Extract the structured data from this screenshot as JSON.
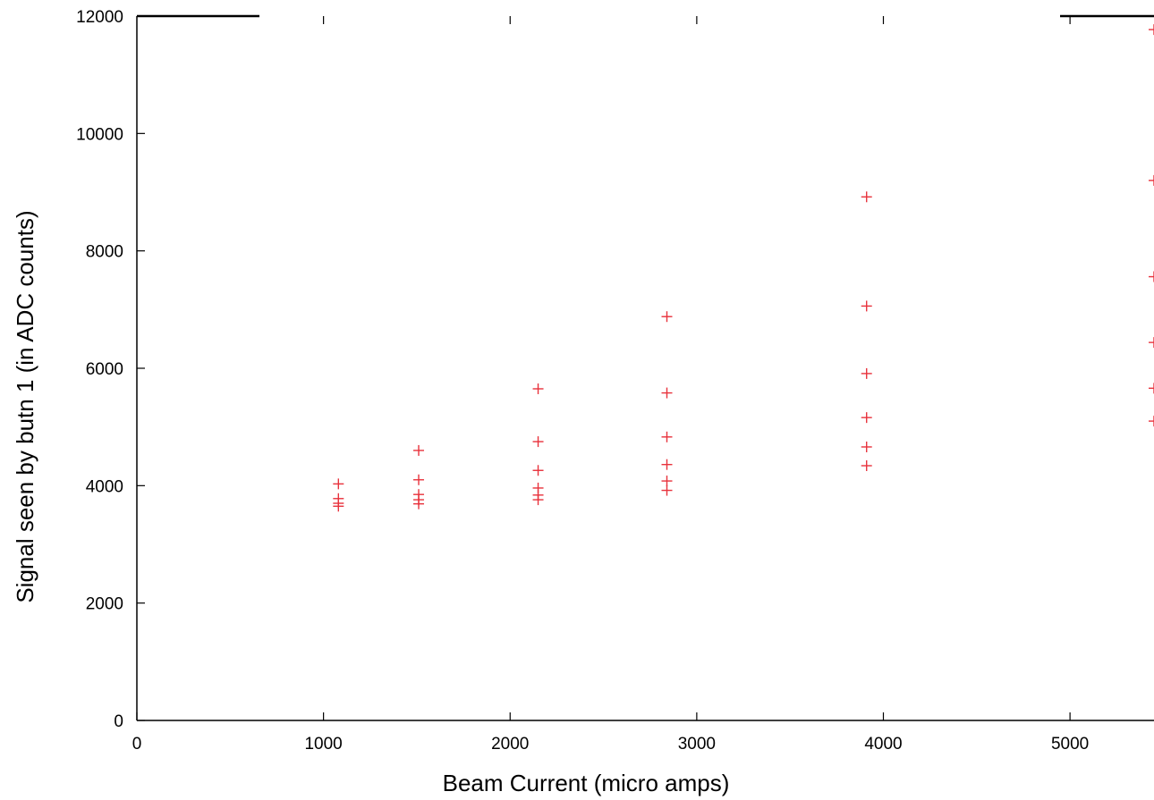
{
  "chart_data": {
    "type": "scatter",
    "title": "",
    "xlabel": "Beam Current (micro amps)",
    "ylabel": "Signal seen by butn 1 (in ADC counts)",
    "xlim": [
      0,
      5450
    ],
    "ylim": [
      0,
      12000
    ],
    "xticks": [
      0,
      1000,
      2000,
      3000,
      4000,
      5000
    ],
    "yticks": [
      0,
      2000,
      4000,
      6000,
      8000,
      10000,
      12000
    ],
    "grid": false,
    "legend": "none",
    "marker": "+",
    "marker_color": "#e8323c",
    "series": [
      {
        "points": [
          [
            1080,
            4030
          ],
          [
            1080,
            3780
          ],
          [
            1080,
            3700
          ],
          [
            1080,
            3650
          ],
          [
            1510,
            4600
          ],
          [
            1510,
            4100
          ],
          [
            1510,
            3850
          ],
          [
            1510,
            3760
          ],
          [
            1510,
            3690
          ],
          [
            2150,
            5650
          ],
          [
            2150,
            4750
          ],
          [
            2150,
            4260
          ],
          [
            2150,
            3960
          ],
          [
            2150,
            3840
          ],
          [
            2150,
            3760
          ],
          [
            2840,
            6880
          ],
          [
            2840,
            5580
          ],
          [
            2840,
            4830
          ],
          [
            2840,
            4360
          ],
          [
            2840,
            4080
          ],
          [
            2840,
            3920
          ],
          [
            3910,
            8920
          ],
          [
            3910,
            7060
          ],
          [
            3910,
            5910
          ],
          [
            3910,
            5160
          ],
          [
            3910,
            4660
          ],
          [
            3910,
            4340
          ],
          [
            5450,
            11770
          ],
          [
            5450,
            9200
          ],
          [
            5450,
            7560
          ],
          [
            5450,
            6440
          ],
          [
            5450,
            5660
          ],
          [
            5450,
            5100
          ]
        ]
      }
    ]
  }
}
